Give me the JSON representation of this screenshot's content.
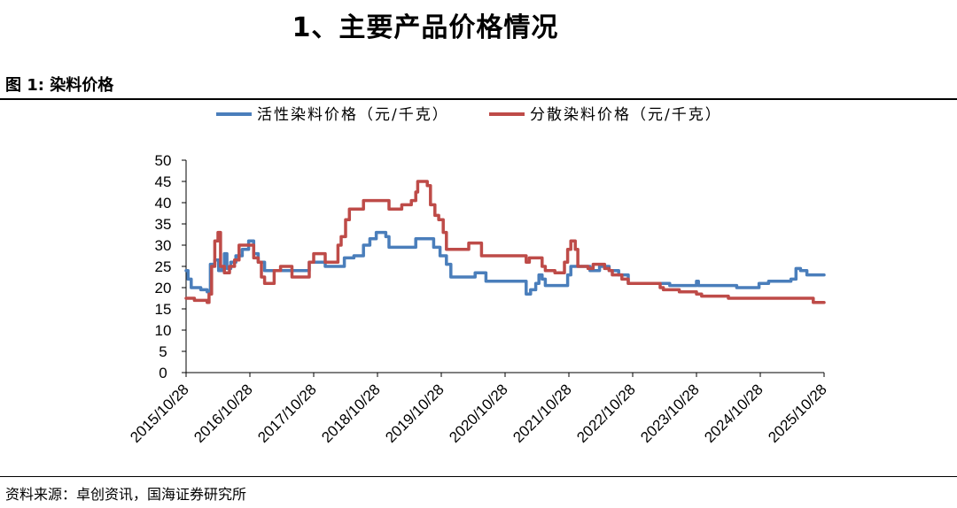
{
  "heading": {
    "main_title": "1、主要产品价格情况",
    "figure_title": "图 1:  染料价格"
  },
  "source": "资料来源：卓创资讯，国海证券研究所",
  "colors": {
    "active": "#4a7ebb",
    "disperse": "#be4b48",
    "axis": "#000000"
  },
  "chart_data": {
    "type": "line",
    "title": "染料价格",
    "xlabel": "",
    "ylabel": "",
    "ylim": [
      0,
      50
    ],
    "yticks": [
      0,
      5,
      10,
      15,
      20,
      25,
      30,
      35,
      40,
      45,
      50
    ],
    "x_start": 2015.82,
    "x_end": 2025.82,
    "categories": [
      "2015/10/28",
      "2016/10/28",
      "2017/10/28",
      "2018/10/28",
      "2019/10/28",
      "2020/10/28",
      "2021/10/28",
      "2022/10/28",
      "2023/10/28",
      "2024/10/28",
      "2025/10/28"
    ],
    "legend_position": "top",
    "grid": false,
    "series": [
      {
        "name": "活性染料价格（元/千克）",
        "color": "#4a7ebb",
        "points": [
          [
            2015.82,
            24
          ],
          [
            2015.85,
            22
          ],
          [
            2015.9,
            20
          ],
          [
            2016.05,
            19.5
          ],
          [
            2016.15,
            19
          ],
          [
            2016.2,
            25.5
          ],
          [
            2016.27,
            26.5
          ],
          [
            2016.33,
            24
          ],
          [
            2016.38,
            24.5
          ],
          [
            2016.42,
            28
          ],
          [
            2016.46,
            24.5
          ],
          [
            2016.52,
            26
          ],
          [
            2016.6,
            27.5
          ],
          [
            2016.7,
            29
          ],
          [
            2016.8,
            31
          ],
          [
            2016.88,
            28
          ],
          [
            2016.95,
            26
          ],
          [
            2017.05,
            24
          ],
          [
            2017.15,
            24
          ],
          [
            2017.3,
            24
          ],
          [
            2017.45,
            24
          ],
          [
            2017.6,
            24
          ],
          [
            2017.75,
            26
          ],
          [
            2017.9,
            26
          ],
          [
            2018.0,
            25
          ],
          [
            2018.25,
            25
          ],
          [
            2018.3,
            27
          ],
          [
            2018.45,
            27.5
          ],
          [
            2018.6,
            30
          ],
          [
            2018.7,
            31.5
          ],
          [
            2018.8,
            33
          ],
          [
            2018.95,
            32
          ],
          [
            2019.0,
            29.5
          ],
          [
            2019.2,
            29.5
          ],
          [
            2019.35,
            29.5
          ],
          [
            2019.42,
            31.5
          ],
          [
            2019.6,
            31.5
          ],
          [
            2019.7,
            29.5
          ],
          [
            2019.8,
            27.5
          ],
          [
            2019.9,
            25.5
          ],
          [
            2019.97,
            22.5
          ],
          [
            2020.1,
            22.5
          ],
          [
            2020.3,
            22.5
          ],
          [
            2020.35,
            23.5
          ],
          [
            2020.5,
            23.5
          ],
          [
            2020.52,
            21.5
          ],
          [
            2020.7,
            21.5
          ],
          [
            2020.9,
            21.5
          ],
          [
            2021.1,
            21.5
          ],
          [
            2021.15,
            18.5
          ],
          [
            2021.22,
            19.5
          ],
          [
            2021.3,
            21
          ],
          [
            2021.35,
            23
          ],
          [
            2021.4,
            22
          ],
          [
            2021.45,
            20.5
          ],
          [
            2021.6,
            20.5
          ],
          [
            2021.75,
            20.5
          ],
          [
            2021.8,
            23
          ],
          [
            2021.85,
            25
          ],
          [
            2021.95,
            25
          ],
          [
            2022.05,
            25
          ],
          [
            2022.15,
            24
          ],
          [
            2022.3,
            25
          ],
          [
            2022.45,
            24
          ],
          [
            2022.6,
            23
          ],
          [
            2022.75,
            21
          ],
          [
            2022.9,
            21
          ],
          [
            2023.1,
            21
          ],
          [
            2023.3,
            21
          ],
          [
            2023.4,
            20.5
          ],
          [
            2023.7,
            20.5
          ],
          [
            2023.82,
            21.5
          ],
          [
            2023.85,
            20.5
          ],
          [
            2024.1,
            20.5
          ],
          [
            2024.3,
            20.5
          ],
          [
            2024.45,
            20
          ],
          [
            2024.7,
            20
          ],
          [
            2024.8,
            21
          ],
          [
            2024.95,
            21.5
          ],
          [
            2025.15,
            21.5
          ],
          [
            2025.3,
            22
          ],
          [
            2025.38,
            24.5
          ],
          [
            2025.45,
            24
          ],
          [
            2025.55,
            23
          ],
          [
            2025.82,
            23
          ]
        ]
      },
      {
        "name": "分散染料价格（元/千克）",
        "color": "#be4b48",
        "points": [
          [
            2015.82,
            17.5
          ],
          [
            2015.95,
            17
          ],
          [
            2016.05,
            17
          ],
          [
            2016.15,
            16.5
          ],
          [
            2016.18,
            18.5
          ],
          [
            2016.22,
            25
          ],
          [
            2016.27,
            31
          ],
          [
            2016.32,
            33
          ],
          [
            2016.36,
            25
          ],
          [
            2016.42,
            23.5
          ],
          [
            2016.5,
            25
          ],
          [
            2016.58,
            26.5
          ],
          [
            2016.65,
            30
          ],
          [
            2016.8,
            30
          ],
          [
            2016.88,
            27
          ],
          [
            2016.95,
            26
          ],
          [
            2017.0,
            22.5
          ],
          [
            2017.05,
            21
          ],
          [
            2017.12,
            21
          ],
          [
            2017.2,
            24
          ],
          [
            2017.3,
            25
          ],
          [
            2017.4,
            25
          ],
          [
            2017.48,
            22.5
          ],
          [
            2017.65,
            22.5
          ],
          [
            2017.75,
            26
          ],
          [
            2017.82,
            28
          ],
          [
            2017.95,
            28
          ],
          [
            2018.0,
            26
          ],
          [
            2018.15,
            26
          ],
          [
            2018.2,
            30
          ],
          [
            2018.25,
            32
          ],
          [
            2018.32,
            36
          ],
          [
            2018.38,
            38.5
          ],
          [
            2018.5,
            38.5
          ],
          [
            2018.6,
            40.5
          ],
          [
            2018.8,
            40.5
          ],
          [
            2018.95,
            40.5
          ],
          [
            2019.0,
            38.5
          ],
          [
            2019.15,
            38.5
          ],
          [
            2019.2,
            39.5
          ],
          [
            2019.35,
            40.5
          ],
          [
            2019.42,
            42.5
          ],
          [
            2019.45,
            45
          ],
          [
            2019.55,
            45
          ],
          [
            2019.6,
            44
          ],
          [
            2019.65,
            39.5
          ],
          [
            2019.72,
            37
          ],
          [
            2019.78,
            36
          ],
          [
            2019.85,
            33
          ],
          [
            2019.9,
            29
          ],
          [
            2020.0,
            29
          ],
          [
            2020.15,
            29
          ],
          [
            2020.25,
            30.5
          ],
          [
            2020.35,
            30.5
          ],
          [
            2020.45,
            27.5
          ],
          [
            2020.6,
            27.5
          ],
          [
            2020.9,
            27.5
          ],
          [
            2021.0,
            27.5
          ],
          [
            2021.1,
            27.5
          ],
          [
            2021.15,
            26
          ],
          [
            2021.2,
            27
          ],
          [
            2021.35,
            27
          ],
          [
            2021.4,
            25
          ],
          [
            2021.45,
            24
          ],
          [
            2021.6,
            23.5
          ],
          [
            2021.72,
            23.5
          ],
          [
            2021.75,
            26
          ],
          [
            2021.8,
            29
          ],
          [
            2021.85,
            31
          ],
          [
            2021.92,
            29
          ],
          [
            2021.96,
            25
          ],
          [
            2022.05,
            25
          ],
          [
            2022.12,
            24.5
          ],
          [
            2022.2,
            25.5
          ],
          [
            2022.32,
            25.5
          ],
          [
            2022.38,
            24.5
          ],
          [
            2022.45,
            24
          ],
          [
            2022.5,
            23
          ],
          [
            2022.65,
            22
          ],
          [
            2022.75,
            21
          ],
          [
            2022.9,
            21
          ],
          [
            2023.2,
            21
          ],
          [
            2023.25,
            20
          ],
          [
            2023.3,
            19.5
          ],
          [
            2023.45,
            19.5
          ],
          [
            2023.55,
            19
          ],
          [
            2023.75,
            19
          ],
          [
            2023.82,
            18.5
          ],
          [
            2023.9,
            18
          ],
          [
            2024.05,
            18
          ],
          [
            2024.25,
            18
          ],
          [
            2024.32,
            17.5
          ],
          [
            2024.6,
            17.5
          ],
          [
            2024.9,
            17.5
          ],
          [
            2025.2,
            17.5
          ],
          [
            2025.4,
            17.5
          ],
          [
            2025.6,
            17.5
          ],
          [
            2025.65,
            16.5
          ],
          [
            2025.82,
            16.5
          ]
        ]
      }
    ]
  }
}
